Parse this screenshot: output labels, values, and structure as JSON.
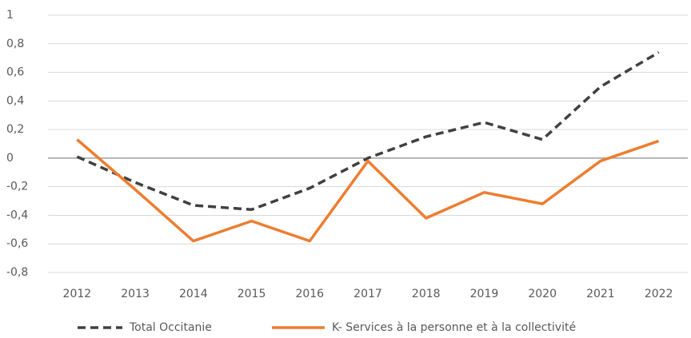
{
  "chart_data": {
    "type": "line",
    "categories": [
      "2012",
      "2013",
      "2014",
      "2015",
      "2016",
      "2017",
      "2018",
      "2019",
      "2020",
      "2021",
      "2022"
    ],
    "series": [
      {
        "name": "Total Occitanie",
        "color": "#404040",
        "style": "dashed",
        "values": [
          0.01,
          -0.17,
          -0.33,
          -0.36,
          -0.21,
          0,
          0.15,
          0.25,
          0.13,
          0.5,
          0.74
        ]
      },
      {
        "name": "K- Services à la personne et à la collectivité",
        "color": "#ed7d31",
        "style": "solid",
        "values": [
          0.13,
          -0.22,
          -0.58,
          -0.44,
          -0.58,
          -0.02,
          -0.42,
          -0.24,
          -0.32,
          -0.02,
          0.12
        ]
      }
    ],
    "ylim": [
      -0.8,
      1
    ],
    "yticks": [
      {
        "value": -0.8,
        "label": "-0,8"
      },
      {
        "value": -0.6,
        "label": "-0,6"
      },
      {
        "value": -0.4,
        "label": "-0,4"
      },
      {
        "value": -0.2,
        "label": "-0,2"
      },
      0,
      {
        "value": 0.2,
        "label": "0,2"
      },
      {
        "value": 0.4,
        "label": "0,4"
      },
      {
        "value": 0.6,
        "label": "0,6"
      },
      {
        "value": 0.8,
        "label": "0,8"
      },
      1
    ],
    "grid": true,
    "legend": "bottom"
  }
}
